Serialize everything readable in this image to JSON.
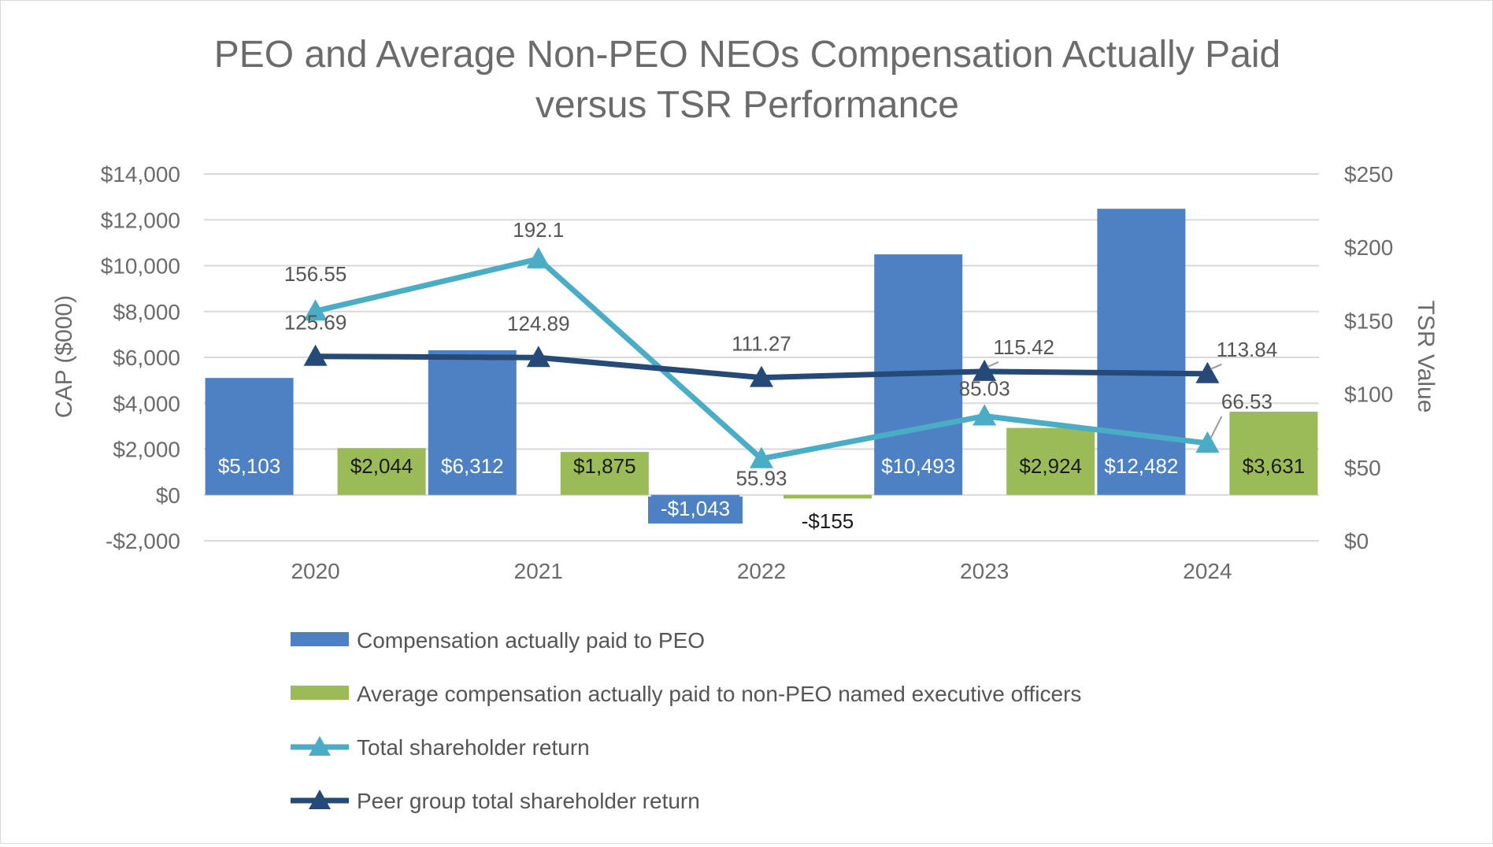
{
  "chart_data": {
    "type": "bar",
    "title_line1": "PEO and Average Non-PEO NEOs Compensation Actually Paid",
    "title_line2": "versus TSR Performance",
    "ylabel": "CAP ($000)",
    "y2label": "TSR Value",
    "categories": [
      "2020",
      "2021",
      "2022",
      "2023",
      "2024"
    ],
    "ylim": [
      -2000,
      14000
    ],
    "y_ticks": [
      -2000,
      0,
      2000,
      4000,
      6000,
      8000,
      10000,
      12000,
      14000
    ],
    "y_tick_labels": [
      "-$2,000",
      "$0",
      "$2,000",
      "$4,000",
      "$6,000",
      "$8,000",
      "$10,000",
      "$12,000",
      "$14,000"
    ],
    "y2lim": [
      0,
      250
    ],
    "y2_ticks": [
      0,
      50,
      100,
      150,
      200,
      250
    ],
    "y2_tick_labels": [
      "$0",
      "$50",
      "$100",
      "$150",
      "$200",
      "$250"
    ],
    "grid": true,
    "legend_position": "bottom",
    "series": [
      {
        "name": "Compensation actually paid to PEO",
        "kind": "bar",
        "axis": "left",
        "color": "#4e81c3",
        "values": [
          5103,
          6312,
          -1043,
          10493,
          12482
        ],
        "labels": [
          "$5,103",
          "$6,312",
          "-$1,043",
          "$10,493",
          "$12,482"
        ]
      },
      {
        "name": "Average compensation actually paid to non-PEO named executive officers",
        "kind": "bar",
        "axis": "left",
        "color": "#9bbb59",
        "values": [
          2044,
          1875,
          -155,
          2924,
          3631
        ],
        "labels": [
          "$2,044",
          "$1,875",
          "-$155",
          "$2,924",
          "$3,631"
        ]
      },
      {
        "name": "Total shareholder return",
        "kind": "line",
        "axis": "right",
        "color": "#4bacc6",
        "values": [
          156.55,
          192.1,
          55.93,
          85.03,
          66.53
        ],
        "labels": [
          "156.55",
          "192.1",
          "55.93",
          "85.03",
          "66.53"
        ]
      },
      {
        "name": "Peer group total shareholder return",
        "kind": "line",
        "axis": "right",
        "color": "#264a78",
        "values": [
          125.69,
          124.89,
          111.27,
          115.42,
          113.84
        ],
        "labels": [
          "125.69",
          "124.89",
          "111.27",
          "115.42",
          "113.84"
        ]
      }
    ]
  }
}
